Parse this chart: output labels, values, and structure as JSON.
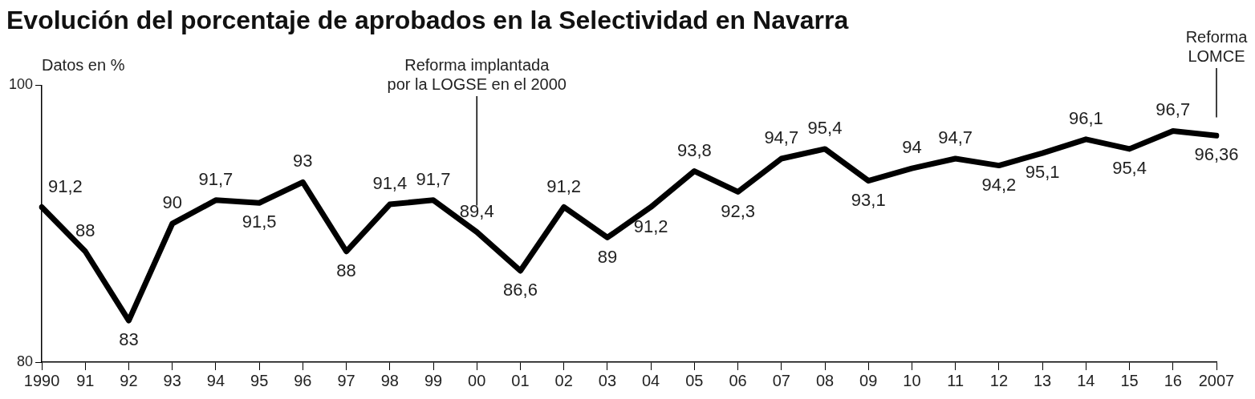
{
  "chart_data": {
    "type": "line",
    "title": "Evolución del porcentaje de aprobados en la Selectividad en Navarra",
    "ylabel": "Datos en %",
    "categories": [
      "1990",
      "91",
      "92",
      "93",
      "94",
      "95",
      "96",
      "97",
      "98",
      "99",
      "00",
      "01",
      "02",
      "03",
      "04",
      "05",
      "06",
      "07",
      "08",
      "09",
      "10",
      "11",
      "12",
      "13",
      "14",
      "15",
      "16",
      "2007"
    ],
    "series": [
      {
        "color": "#000000",
        "values": [
          91.2,
          88,
          83,
          90,
          91.7,
          91.5,
          93,
          88,
          91.4,
          91.7,
          89.4,
          86.6,
          91.2,
          89,
          91.2,
          93.8,
          92.3,
          94.7,
          95.4,
          93.1,
          94,
          94.7,
          94.2,
          95.1,
          96.1,
          95.4,
          96.7,
          96.36
        ],
        "value_labels": [
          "91,2",
          "88",
          "83",
          "90",
          "91,7",
          "91,5",
          "93",
          "88",
          "91,4",
          "91,7",
          "89,4",
          "86,6",
          "91,2",
          "89",
          "91,2",
          "93,8",
          "92,3",
          "94,7",
          "95,4",
          "93,1",
          "94",
          "94,7",
          "94,2",
          "95,1",
          "96,1",
          "95,4",
          "96,7",
          "96,36"
        ]
      }
    ],
    "ylim": [
      80,
      100
    ],
    "yticks": [
      80,
      100
    ],
    "grid": false,
    "legend": false,
    "marker": "none",
    "line_style": "solid",
    "ref_lines": [
      {
        "axis": "x",
        "value": "00",
        "label": "Reforma implantada\npor la LOGSE en el 2000"
      },
      {
        "axis": "x",
        "value": "2007",
        "label": "Reforma\nLOMCE"
      }
    ]
  }
}
